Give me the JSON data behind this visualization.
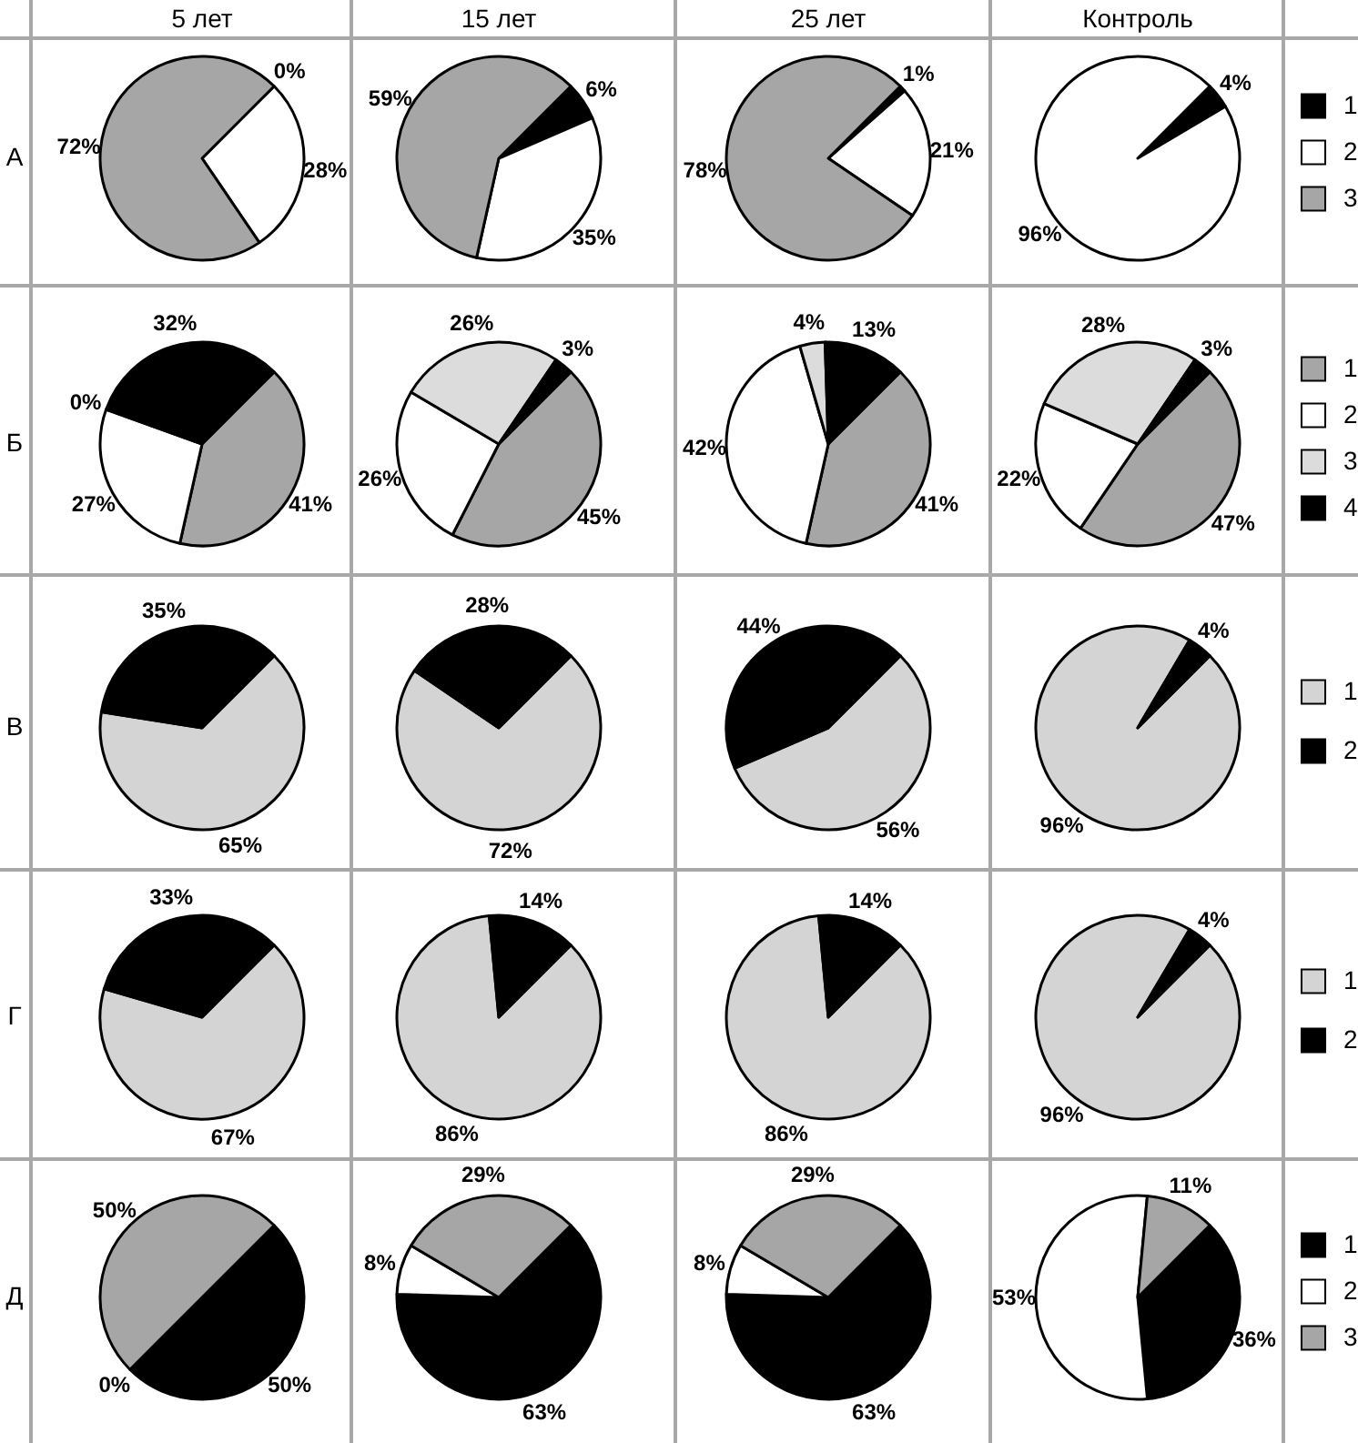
{
  "chart_data": [
    {
      "type": "pie",
      "title": "5 лет",
      "ylabel": "А",
      "categories": [
        null,
        null,
        null
      ],
      "values": [
        0,
        28,
        72
      ],
      "value_labels": [
        "0%",
        "28%",
        "72%"
      ],
      "colors": [
        "#000000",
        "#ffffff",
        "#a6a6a6"
      ]
    },
    {
      "type": "pie",
      "title": "15 лет",
      "categories": [
        null,
        null,
        null
      ],
      "values": [
        6,
        35,
        59
      ],
      "value_labels": [
        "6%",
        "35%",
        "59%"
      ],
      "colors": [
        "#000000",
        "#ffffff",
        "#a6a6a6"
      ]
    },
    {
      "type": "pie",
      "title": "25 лет",
      "categories": [
        null,
        null,
        null
      ],
      "values": [
        1,
        21,
        78
      ],
      "value_labels": [
        "1%",
        "21%",
        "78%"
      ],
      "colors": [
        "#000000",
        "#ffffff",
        "#a6a6a6"
      ]
    },
    {
      "type": "pie",
      "title": "Контроль",
      "categories": [
        "1",
        "2",
        "3"
      ],
      "values": [
        4,
        96,
        0
      ],
      "value_labels": [
        "4%",
        "96%",
        null
      ],
      "colors": [
        "#000000",
        "#ffffff",
        "#a6a6a6"
      ],
      "legend": "right"
    },
    {
      "type": "pie",
      "ylabel": "Б",
      "categories": [
        null,
        null,
        null,
        null
      ],
      "values": [
        41,
        27,
        0,
        32
      ],
      "value_labels": [
        "41%",
        "27%",
        "0%",
        "32%"
      ],
      "colors": [
        "#a6a6a6",
        "#ffffff",
        "#dcdcdc",
        "#000000"
      ]
    },
    {
      "type": "pie",
      "categories": [
        null,
        null,
        null,
        null
      ],
      "values": [
        45,
        26,
        26,
        3
      ],
      "value_labels": [
        "45%",
        "26%",
        "26%",
        "3%"
      ],
      "colors": [
        "#a6a6a6",
        "#ffffff",
        "#dcdcdc",
        "#000000"
      ]
    },
    {
      "type": "pie",
      "categories": [
        null,
        null,
        null,
        null
      ],
      "values": [
        41,
        42,
        4,
        13
      ],
      "value_labels": [
        "41%",
        "42%",
        "4%",
        "13%"
      ],
      "colors": [
        "#a6a6a6",
        "#ffffff",
        "#dcdcdc",
        "#000000"
      ]
    },
    {
      "type": "pie",
      "categories": [
        "1",
        "2",
        "3",
        "4"
      ],
      "values": [
        47,
        22,
        28,
        3
      ],
      "value_labels": [
        "47%",
        "22%",
        "28%",
        "3%"
      ],
      "colors": [
        "#a6a6a6",
        "#ffffff",
        "#dcdcdc",
        "#000000"
      ],
      "legend": "right"
    },
    {
      "type": "pie",
      "ylabel": "В",
      "categories": [
        null,
        null
      ],
      "values": [
        65,
        35
      ],
      "value_labels": [
        "65%",
        "35%"
      ],
      "colors": [
        "#d4d4d4",
        "#000000"
      ]
    },
    {
      "type": "pie",
      "categories": [
        null,
        null
      ],
      "values": [
        72,
        28
      ],
      "value_labels": [
        "72%",
        "28%"
      ],
      "colors": [
        "#d4d4d4",
        "#000000"
      ]
    },
    {
      "type": "pie",
      "categories": [
        null,
        null
      ],
      "values": [
        56,
        44
      ],
      "value_labels": [
        "56%",
        "44%"
      ],
      "colors": [
        "#d4d4d4",
        "#000000"
      ]
    },
    {
      "type": "pie",
      "categories": [
        "1",
        "2"
      ],
      "values": [
        96,
        4
      ],
      "value_labels": [
        "96%",
        "4%"
      ],
      "colors": [
        "#d4d4d4",
        "#000000"
      ],
      "legend": "right"
    },
    {
      "type": "pie",
      "ylabel": "Г",
      "categories": [
        null,
        null
      ],
      "values": [
        67,
        33
      ],
      "value_labels": [
        "67%",
        "33%"
      ],
      "colors": [
        "#d4d4d4",
        "#000000"
      ]
    },
    {
      "type": "pie",
      "categories": [
        null,
        null
      ],
      "values": [
        86,
        14
      ],
      "value_labels": [
        "86%",
        "14%"
      ],
      "colors": [
        "#d4d4d4",
        "#000000"
      ]
    },
    {
      "type": "pie",
      "categories": [
        null,
        null
      ],
      "values": [
        86,
        14
      ],
      "value_labels": [
        "86%",
        "14%"
      ],
      "colors": [
        "#d4d4d4",
        "#000000"
      ]
    },
    {
      "type": "pie",
      "categories": [
        "1",
        "2"
      ],
      "values": [
        96,
        4
      ],
      "value_labels": [
        "96%",
        "4%"
      ],
      "colors": [
        "#d4d4d4",
        "#000000"
      ],
      "legend": "right"
    },
    {
      "type": "pie",
      "ylabel": "Д",
      "categories": [
        null,
        null,
        null
      ],
      "values": [
        50,
        0,
        50
      ],
      "value_labels": [
        "50%",
        "0%",
        "50%"
      ],
      "colors": [
        "#000000",
        "#ffffff",
        "#a6a6a6"
      ]
    },
    {
      "type": "pie",
      "categories": [
        null,
        null,
        null
      ],
      "values": [
        63,
        8,
        29
      ],
      "value_labels": [
        "63%",
        "8%",
        "29%"
      ],
      "colors": [
        "#000000",
        "#ffffff",
        "#a6a6a6"
      ]
    },
    {
      "type": "pie",
      "categories": [
        null,
        null,
        null
      ],
      "values": [
        63,
        8,
        29
      ],
      "value_labels": [
        "63%",
        "8%",
        "29%"
      ],
      "colors": [
        "#000000",
        "#ffffff",
        "#a6a6a6"
      ]
    },
    {
      "type": "pie",
      "categories": [
        "1",
        "2",
        "3"
      ],
      "values": [
        36,
        53,
        11
      ],
      "value_labels": [
        "36%",
        "53%",
        "11%"
      ],
      "colors": [
        "#000000",
        "#ffffff",
        "#a6a6a6"
      ],
      "legend": "right"
    }
  ]
}
